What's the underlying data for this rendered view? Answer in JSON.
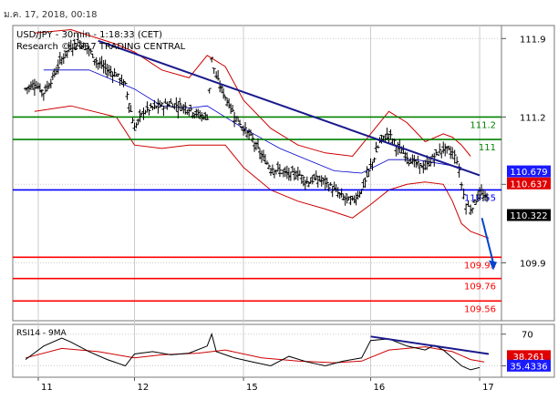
{
  "header": {
    "timestamp": "ม.ค. 17, 2018, 00:18"
  },
  "main_panel": {
    "title_line1": "USD/JPY - 30min - 1:18:33 (CET)",
    "title_line2": "Research © 2017 TRADING CENTRAL"
  },
  "rsi_panel": {
    "label": "RSI14 - 9MA"
  },
  "colors": {
    "price_bar": "#000000",
    "trendline": "#1a1a8c",
    "resistance": "#008000",
    "pivot": "#0000ff",
    "support": "#ff0000",
    "bollinger": "#cc0000",
    "moving_avg": "#0000cc",
    "arrow": "#0044cc",
    "rsi_line": "#000000",
    "rsi_ma": "#cc0000",
    "tag_last": "#000000",
    "tag_blue": "#1a1aff",
    "tag_red": "#e00000",
    "grid": "#cccccc"
  },
  "chart_data": [
    {
      "type": "line",
      "subtype": "ohlc-bars",
      "symbol": "USD/JPY",
      "timeframe": "30min",
      "ylim": [
        109.4,
        112.0
      ],
      "yticks": [
        111.9,
        111.2,
        110.6,
        109.9
      ],
      "yticks_labels": [
        "111.9",
        "111.2",
        "110.6",
        "109.9"
      ],
      "x_labels": [
        "11",
        "12",
        "15",
        "16",
        "17"
      ],
      "x_label_positions": [
        0,
        24,
        48,
        76,
        100
      ],
      "x_range": [
        -2,
        104
      ],
      "price_series": {
        "name": "",
        "points": [
          [
            0,
            111.45
          ],
          [
            2,
            111.5
          ],
          [
            4,
            111.42
          ],
          [
            6,
            111.55
          ],
          [
            8,
            111.72
          ],
          [
            10,
            111.83
          ],
          [
            12,
            111.87
          ],
          [
            14,
            111.8
          ],
          [
            16,
            111.68
          ],
          [
            18,
            111.62
          ],
          [
            20,
            111.58
          ],
          [
            22,
            111.48
          ],
          [
            24,
            111.1
          ],
          [
            26,
            111.25
          ],
          [
            28,
            111.28
          ],
          [
            30,
            111.3
          ],
          [
            32,
            111.32
          ],
          [
            34,
            111.3
          ],
          [
            36,
            111.28
          ],
          [
            38,
            111.22
          ],
          [
            40,
            111.2
          ],
          [
            41,
            111.72
          ],
          [
            42,
            111.55
          ],
          [
            44,
            111.38
          ],
          [
            46,
            111.22
          ],
          [
            48,
            111.1
          ],
          [
            50,
            111.0
          ],
          [
            52,
            110.85
          ],
          [
            54,
            110.75
          ],
          [
            56,
            110.72
          ],
          [
            58,
            110.68
          ],
          [
            60,
            110.7
          ],
          [
            62,
            110.62
          ],
          [
            64,
            110.65
          ],
          [
            66,
            110.62
          ],
          [
            68,
            110.55
          ],
          [
            70,
            110.48
          ],
          [
            72,
            110.45
          ],
          [
            74,
            110.55
          ],
          [
            76,
            110.75
          ],
          [
            78,
            110.98
          ],
          [
            80,
            111.05
          ],
          [
            82,
            110.92
          ],
          [
            84,
            110.85
          ],
          [
            86,
            110.78
          ],
          [
            88,
            110.75
          ],
          [
            90,
            110.85
          ],
          [
            92,
            110.92
          ],
          [
            94,
            110.88
          ],
          [
            95,
            110.82
          ],
          [
            96,
            110.6
          ],
          [
            97,
            110.42
          ],
          [
            98,
            110.38
          ],
          [
            100,
            110.52
          ],
          [
            102,
            110.45
          ]
        ]
      },
      "bollinger_upper": {
        "name": "",
        "points": [
          [
            2,
            111.95
          ],
          [
            10,
            111.98
          ],
          [
            20,
            111.85
          ],
          [
            24,
            111.78
          ],
          [
            30,
            111.62
          ],
          [
            36,
            111.55
          ],
          [
            40,
            111.75
          ],
          [
            44,
            111.65
          ],
          [
            48,
            111.35
          ],
          [
            54,
            111.1
          ],
          [
            60,
            110.95
          ],
          [
            66,
            110.88
          ],
          [
            72,
            110.85
          ],
          [
            76,
            111.05
          ],
          [
            80,
            111.25
          ],
          [
            84,
            111.15
          ],
          [
            88,
            110.98
          ],
          [
            92,
            111.05
          ],
          [
            94,
            111.02
          ],
          [
            96,
            110.95
          ],
          [
            98,
            110.85
          ]
        ]
      },
      "bollinger_lower": {
        "name": "",
        "points": [
          [
            2,
            111.25
          ],
          [
            10,
            111.3
          ],
          [
            20,
            111.2
          ],
          [
            24,
            110.95
          ],
          [
            30,
            110.92
          ],
          [
            36,
            110.95
          ],
          [
            40,
            110.95
          ],
          [
            44,
            110.95
          ],
          [
            48,
            110.75
          ],
          [
            54,
            110.55
          ],
          [
            60,
            110.45
          ],
          [
            66,
            110.38
          ],
          [
            72,
            110.3
          ],
          [
            76,
            110.42
          ],
          [
            80,
            110.55
          ],
          [
            84,
            110.6
          ],
          [
            88,
            110.62
          ],
          [
            92,
            110.6
          ],
          [
            94,
            110.45
          ],
          [
            96,
            110.25
          ],
          [
            98,
            110.18
          ],
          [
            102,
            110.12
          ]
        ]
      },
      "moving_average": {
        "name": "",
        "points": [
          [
            4,
            111.62
          ],
          [
            14,
            111.62
          ],
          [
            24,
            111.45
          ],
          [
            30,
            111.3
          ],
          [
            36,
            111.28
          ],
          [
            40,
            111.3
          ],
          [
            48,
            111.1
          ],
          [
            56,
            110.92
          ],
          [
            62,
            110.82
          ],
          [
            68,
            110.72
          ],
          [
            74,
            110.7
          ],
          [
            80,
            110.82
          ],
          [
            86,
            110.82
          ],
          [
            92,
            110.78
          ],
          [
            96,
            110.75
          ]
        ]
      },
      "trendline": {
        "name": "",
        "points": [
          [
            16,
            111.88
          ],
          [
            100,
            110.68
          ]
        ]
      },
      "levels": [
        {
          "value": 111.2,
          "label": "111.2",
          "kind": "resistance"
        },
        {
          "value": 111.0,
          "label": "111",
          "kind": "resistance"
        },
        {
          "value": 110.55,
          "label": "110.55",
          "kind": "pivot"
        },
        {
          "value": 109.95,
          "label": "109.95",
          "kind": "support"
        },
        {
          "value": 109.76,
          "label": "109.76",
          "kind": "support"
        },
        {
          "value": 109.56,
          "label": "109.56",
          "kind": "support"
        }
      ],
      "forecast_arrow": {
        "from": [
          100.5,
          110.3
        ],
        "to": [
          103,
          109.85
        ]
      },
      "price_tags": [
        {
          "value": 110.679,
          "label": "110.679",
          "kind": "blue"
        },
        {
          "value": 110.637,
          "label": "110.637",
          "kind": "red"
        },
        {
          "value": 110.322,
          "label": "110.322",
          "kind": "last"
        }
      ],
      "partial_tick_label": "110.6"
    },
    {
      "type": "line",
      "indicator": "RSI14 - 9MA",
      "ylim": [
        18,
        80
      ],
      "yticks": [
        70,
        30
      ],
      "yticks_labels": [
        "70",
        "30"
      ],
      "rsi": {
        "name": "",
        "points": [
          [
            0,
            38
          ],
          [
            4,
            55
          ],
          [
            8,
            65
          ],
          [
            10,
            60
          ],
          [
            14,
            48
          ],
          [
            18,
            38
          ],
          [
            22,
            30
          ],
          [
            24,
            45
          ],
          [
            28,
            48
          ],
          [
            32,
            44
          ],
          [
            36,
            46
          ],
          [
            40,
            55
          ],
          [
            41,
            70
          ],
          [
            42,
            48
          ],
          [
            46,
            40
          ],
          [
            50,
            35
          ],
          [
            54,
            30
          ],
          [
            58,
            42
          ],
          [
            62,
            35
          ],
          [
            66,
            30
          ],
          [
            70,
            36
          ],
          [
            74,
            40
          ],
          [
            76,
            62
          ],
          [
            80,
            64
          ],
          [
            84,
            55
          ],
          [
            88,
            50
          ],
          [
            90,
            56
          ],
          [
            92,
            50
          ],
          [
            94,
            40
          ],
          [
            96,
            30
          ],
          [
            98,
            25
          ],
          [
            100,
            28
          ]
        ]
      },
      "rsi_ma": {
        "name": "",
        "points": [
          [
            0,
            40
          ],
          [
            8,
            52
          ],
          [
            16,
            48
          ],
          [
            24,
            40
          ],
          [
            30,
            44
          ],
          [
            38,
            46
          ],
          [
            44,
            50
          ],
          [
            52,
            40
          ],
          [
            60,
            36
          ],
          [
            68,
            34
          ],
          [
            74,
            36
          ],
          [
            80,
            50
          ],
          [
            88,
            54
          ],
          [
            94,
            48
          ],
          [
            98,
            38
          ],
          [
            101,
            35
          ]
        ]
      },
      "trendline": {
        "name": "",
        "points": [
          [
            76,
            67
          ],
          [
            102,
            45
          ]
        ]
      },
      "price_tags": [
        {
          "value": 38.261,
          "label": "38.261",
          "kind": "red"
        },
        {
          "value": 35.4336,
          "label": "35.4336",
          "kind": "blue"
        }
      ]
    }
  ]
}
